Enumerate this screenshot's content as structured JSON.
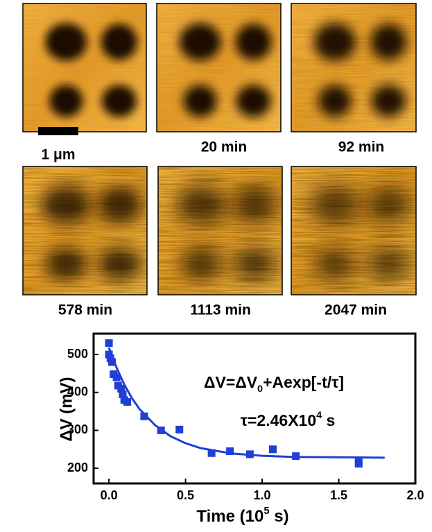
{
  "scale_bar_label": "1 μm",
  "panel_labels": [
    "20 min",
    "92 min",
    "578 min",
    "1113 min",
    "2047 min"
  ],
  "chart_data": {
    "type": "scatter",
    "y_label": "ΔV (mV)",
    "x_label": [
      "Time (10",
      "5",
      " s)"
    ],
    "annotations": [
      [
        "ΔV=ΔV",
        "0",
        "+Aexp[-t/τ]"
      ],
      [
        "τ=2.46X10",
        "4",
        " s"
      ]
    ],
    "xlim": [
      -0.1,
      2.0
    ],
    "ylim": [
      160,
      555
    ],
    "xticks": [
      {
        "value": 0,
        "label": "0.0"
      },
      0.5,
      {
        "value": 1,
        "label": "1.0"
      },
      1.5,
      {
        "value": 2,
        "label": "2.0"
      }
    ],
    "yticks": [
      200,
      300,
      400,
      500
    ],
    "series": [
      {
        "type": "scatter",
        "color": "#1f3fd6",
        "x": [
          0.0,
          0.0,
          0.01,
          0.02,
          0.03,
          0.05,
          0.06,
          0.08,
          0.09,
          0.1,
          0.12,
          0.23,
          0.34,
          0.46,
          0.67,
          0.79,
          0.92,
          1.07,
          1.22,
          1.63,
          1.63
        ],
        "values": [
          530,
          500,
          490,
          480,
          448,
          440,
          418,
          410,
          395,
          380,
          375,
          337,
          300,
          302,
          240,
          245,
          237,
          250,
          232,
          212,
          218
        ]
      },
      {
        "type": "line",
        "color": "#1f3fd6",
        "x": [
          0,
          0.05,
          0.1,
          0.15,
          0.2,
          0.3,
          0.4,
          0.5,
          0.6,
          0.8,
          1.0,
          1.2,
          1.5,
          1.8
        ],
        "values": [
          518,
          465,
          421,
          385,
          356,
          314,
          285,
          266,
          253,
          239,
          233,
          230,
          229,
          228
        ]
      }
    ]
  }
}
